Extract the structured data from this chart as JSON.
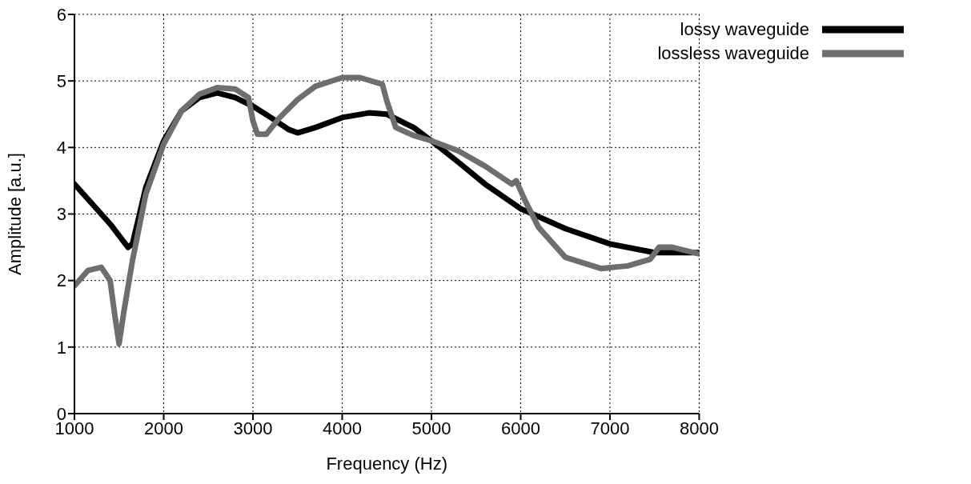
{
  "chart_data": {
    "type": "line",
    "xlabel": "Frequency (Hz)",
    "ylabel": "Amplitude [a.u.]",
    "xlim": [
      1000,
      8000
    ],
    "xticks": [
      1000,
      2000,
      3000,
      4000,
      5000,
      6000,
      7000,
      8000
    ],
    "ylim": [
      0,
      6
    ],
    "yticks": [
      0,
      1,
      2,
      3,
      4,
      5,
      6
    ],
    "grid": true,
    "legend": "top right",
    "marker": "none",
    "line_style": "solid",
    "series": [
      {
        "name": "lossy waveguide",
        "color": "#000000",
        "x": [
          1000,
          1200,
          1400,
          1600,
          1650,
          1800,
          2000,
          2200,
          2400,
          2600,
          2800,
          3000,
          3200,
          3400,
          3500,
          3700,
          4000,
          4300,
          4500,
          4800,
          5000,
          5300,
          5600,
          6000,
          6500,
          7000,
          7500,
          8000
        ],
        "values": [
          3.45,
          3.15,
          2.85,
          2.5,
          2.55,
          3.4,
          4.1,
          4.55,
          4.75,
          4.82,
          4.75,
          4.62,
          4.45,
          4.27,
          4.22,
          4.3,
          4.45,
          4.52,
          4.5,
          4.3,
          4.1,
          3.78,
          3.45,
          3.08,
          2.78,
          2.55,
          2.42,
          2.42
        ]
      },
      {
        "name": "lossless waveguide",
        "color": "#6e6e6e",
        "x": [
          1000,
          1150,
          1300,
          1400,
          1450,
          1500,
          1550,
          1650,
          1800,
          2000,
          2200,
          2400,
          2600,
          2800,
          2950,
          3000,
          3050,
          3150,
          3300,
          3500,
          3700,
          4000,
          4200,
          4450,
          4500,
          4600,
          4800,
          5000,
          5300,
          5600,
          5900,
          5950,
          6050,
          6200,
          6500,
          6900,
          7200,
          7450,
          7550,
          7700,
          8000
        ],
        "values": [
          1.92,
          2.15,
          2.2,
          2.0,
          1.5,
          1.05,
          1.5,
          2.3,
          3.3,
          4.05,
          4.55,
          4.8,
          4.9,
          4.88,
          4.75,
          4.4,
          4.2,
          4.2,
          4.45,
          4.72,
          4.92,
          5.05,
          5.05,
          4.95,
          4.7,
          4.3,
          4.18,
          4.1,
          3.95,
          3.72,
          3.45,
          3.5,
          3.2,
          2.8,
          2.35,
          2.18,
          2.22,
          2.32,
          2.5,
          2.5,
          2.4
        ]
      }
    ]
  }
}
